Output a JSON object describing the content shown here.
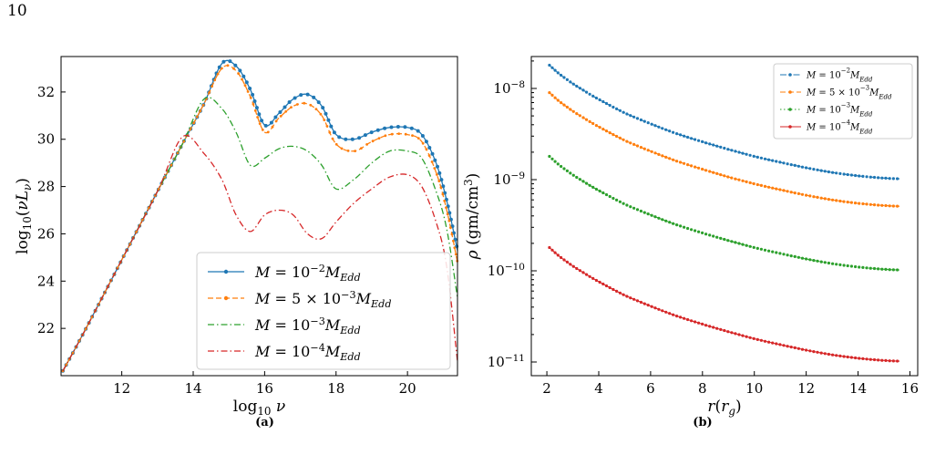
{
  "page_number": "10",
  "colors": {
    "blue": "#1f77b4",
    "orange": "#ff7f0e",
    "green": "#2ca02c",
    "red": "#d62728"
  },
  "chart_data": [
    {
      "type": "line",
      "panel_caption": "(a)",
      "xlabel": "log10 ν",
      "ylabel": "log10(νLν)",
      "xlim": [
        10.3,
        21.4
      ],
      "ylim": [
        20.0,
        33.5
      ],
      "x_ticks": [
        "12",
        "14",
        "16",
        "18",
        "20"
      ],
      "y_ticks": [
        "22",
        "24",
        "26",
        "28",
        "30",
        "32"
      ],
      "grid": false,
      "legend_position": "lower-right",
      "x": [
        10.35,
        11.0,
        12.0,
        13.0,
        13.7,
        14.3,
        14.8,
        15.2,
        15.6,
        16.0,
        16.4,
        16.8,
        17.2,
        17.6,
        18.0,
        18.5,
        19.0,
        19.5,
        20.0,
        20.4,
        20.8,
        21.1,
        21.4
      ],
      "series": [
        {
          "name": "M = 10^-2 M_Edd",
          "style": "solid",
          "marker": true,
          "values": [
            20.2,
            22.0,
            24.9,
            27.8,
            29.8,
            31.5,
            33.2,
            33.1,
            32.1,
            30.6,
            31.1,
            31.7,
            31.9,
            31.4,
            30.2,
            30.0,
            30.3,
            30.5,
            30.5,
            30.2,
            29.0,
            27.4,
            25.3
          ]
        },
        {
          "name": "M = 5 × 10^-3 M_Edd",
          "style": "dashed",
          "marker": true,
          "values": [
            20.2,
            22.0,
            24.9,
            27.8,
            29.8,
            31.5,
            33.0,
            32.9,
            31.8,
            30.3,
            30.9,
            31.4,
            31.5,
            31.0,
            29.8,
            29.5,
            29.9,
            30.2,
            30.2,
            29.9,
            28.6,
            27.0,
            24.8
          ]
        },
        {
          "name": "M = 10^-3 M_Edd",
          "style": "dashdot",
          "marker": false,
          "values": [
            20.2,
            22.0,
            24.9,
            27.8,
            29.8,
            31.7,
            31.3,
            30.3,
            28.9,
            29.2,
            29.6,
            29.7,
            29.5,
            28.9,
            27.9,
            28.3,
            29.0,
            29.5,
            29.5,
            29.2,
            27.8,
            26.2,
            23.3
          ]
        },
        {
          "name": "M = 10^-4 M_Edd",
          "style": "dashdot",
          "marker": false,
          "values": [
            20.2,
            22.0,
            24.9,
            27.8,
            30.1,
            29.4,
            28.3,
            26.8,
            26.1,
            26.8,
            27.0,
            26.8,
            26.0,
            25.8,
            26.5,
            27.3,
            27.9,
            28.4,
            28.5,
            28.0,
            26.5,
            24.6,
            20.6
          ]
        }
      ]
    },
    {
      "type": "line",
      "panel_caption": "(b)",
      "xlabel": "r(rg)",
      "ylabel": "ρ (gm/cm3)",
      "xlim": [
        1.4,
        16.3
      ],
      "ylim_log10": [
        -11.15,
        -7.65
      ],
      "yscale": "log",
      "x_ticks": [
        "2",
        "4",
        "6",
        "8",
        "10",
        "12",
        "14",
        "16"
      ],
      "y_ticks": [
        "10^-8",
        "10^-9",
        "10^-10",
        "10^-11"
      ],
      "grid": false,
      "legend_position": "upper-right",
      "x": [
        2.1,
        2.5,
        3.0,
        3.5,
        4.0,
        5.0,
        6.0,
        7.0,
        8.0,
        9.0,
        10.0,
        11.0,
        12.0,
        13.0,
        14.0,
        15.0,
        15.6
      ],
      "series": [
        {
          "name": "M = 10^-2 M_Edd",
          "style": "dashdot",
          "marker": true,
          "values": [
            1.8e-08,
            1.43e-08,
            1.13e-08,
            9.2e-09,
            7.6e-09,
            5.4e-09,
            4.1e-09,
            3.2e-09,
            2.6e-09,
            2.15e-09,
            1.8e-09,
            1.55e-09,
            1.35e-09,
            1.2e-09,
            1.1e-09,
            1.04e-09,
            1.02e-09
          ]
        },
        {
          "name": "M = 5 × 10^-3 M_Edd",
          "style": "dashed",
          "marker": true,
          "values": [
            9e-09,
            7.15e-09,
            5.65e-09,
            4.6e-09,
            3.8e-09,
            2.7e-09,
            2.05e-09,
            1.6e-09,
            1.3e-09,
            1.07e-09,
            9e-10,
            7.75e-10,
            6.75e-10,
            6e-10,
            5.5e-10,
            5.2e-10,
            5.1e-10
          ]
        },
        {
          "name": "M = 10^-3 M_Edd",
          "style": "dotted",
          "marker": true,
          "values": [
            1.8e-09,
            1.43e-09,
            1.13e-09,
            9.2e-10,
            7.6e-10,
            5.4e-10,
            4.1e-10,
            3.2e-10,
            2.6e-10,
            2.15e-10,
            1.8e-10,
            1.55e-10,
            1.35e-10,
            1.2e-10,
            1.1e-10,
            1.04e-10,
            1.02e-10
          ]
        },
        {
          "name": "M = 10^-4 M_Edd",
          "style": "solid",
          "marker": true,
          "values": [
            1.8e-10,
            1.43e-10,
            1.13e-10,
            9.2e-11,
            7.6e-11,
            5.4e-11,
            4.1e-11,
            3.2e-11,
            2.6e-11,
            2.15e-11,
            1.8e-11,
            1.55e-11,
            1.35e-11,
            1.2e-11,
            1.1e-11,
            1.04e-11,
            1.02e-11
          ]
        }
      ]
    }
  ]
}
